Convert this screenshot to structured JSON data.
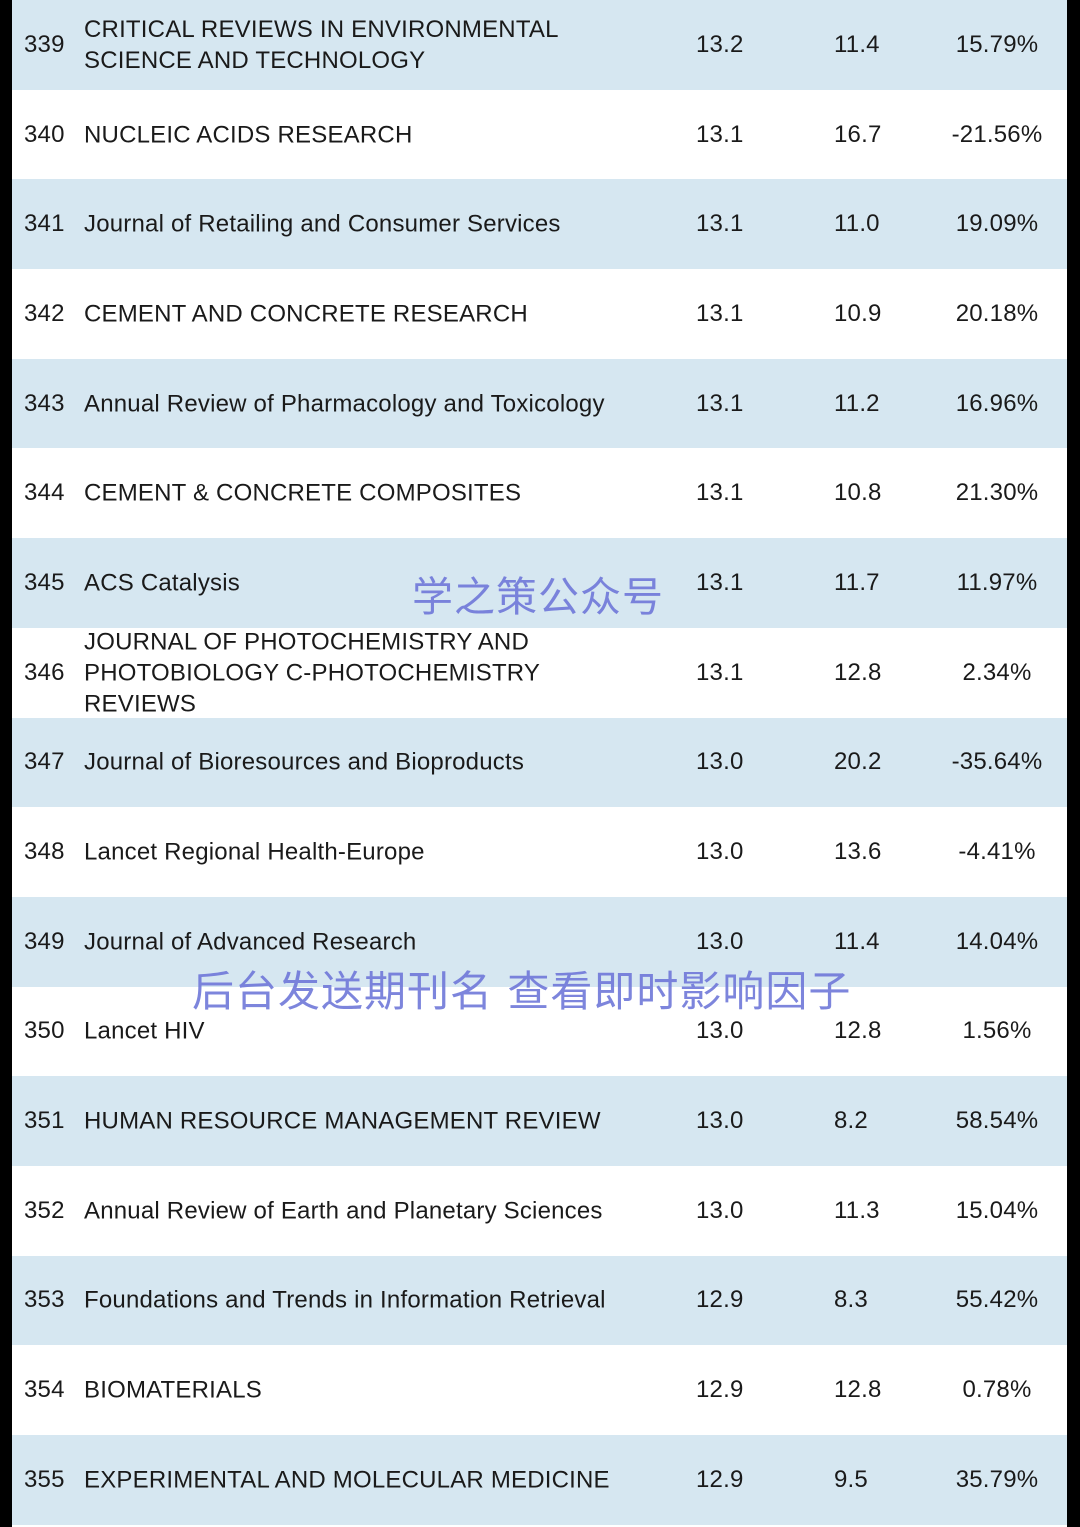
{
  "rows": [
    {
      "rank": "339",
      "name": "CRITICAL REVIEWS IN ENVIRONMENTAL\nSCIENCE AND TECHNOLOGY",
      "if2023": "13.2",
      "if2022": "11.4",
      "change": "15.79%"
    },
    {
      "rank": "340",
      "name": "NUCLEIC ACIDS RESEARCH",
      "if2023": "13.1",
      "if2022": "16.7",
      "change": "-21.56%"
    },
    {
      "rank": "341",
      "name": "Journal of Retailing and Consumer Services",
      "if2023": "13.1",
      "if2022": "11.0",
      "change": "19.09%"
    },
    {
      "rank": "342",
      "name": "CEMENT AND CONCRETE RESEARCH",
      "if2023": "13.1",
      "if2022": "10.9",
      "change": "20.18%"
    },
    {
      "rank": "343",
      "name": "Annual Review of Pharmacology and Toxicology",
      "if2023": "13.1",
      "if2022": "11.2",
      "change": "16.96%"
    },
    {
      "rank": "344",
      "name": "CEMENT & CONCRETE COMPOSITES",
      "if2023": "13.1",
      "if2022": "10.8",
      "change": "21.30%"
    },
    {
      "rank": "345",
      "name": "ACS Catalysis",
      "if2023": "13.1",
      "if2022": "11.7",
      "change": "11.97%"
    },
    {
      "rank": "346",
      "name": "JOURNAL OF PHOTOCHEMISTRY AND\nPHOTOBIOLOGY C-PHOTOCHEMISTRY\nREVIEWS",
      "if2023": "13.1",
      "if2022": "12.8",
      "change": "2.34%"
    },
    {
      "rank": "347",
      "name": "Journal of Bioresources and Bioproducts",
      "if2023": "13.0",
      "if2022": "20.2",
      "change": "-35.64%"
    },
    {
      "rank": "348",
      "name": "Lancet Regional Health-Europe",
      "if2023": "13.0",
      "if2022": "13.6",
      "change": "-4.41%"
    },
    {
      "rank": "349",
      "name": "Journal of Advanced Research",
      "if2023": "13.0",
      "if2022": "11.4",
      "change": "14.04%"
    },
    {
      "rank": "350",
      "name": "Lancet HIV",
      "if2023": "13.0",
      "if2022": "12.8",
      "change": "1.56%"
    },
    {
      "rank": "351",
      "name": "HUMAN RESOURCE MANAGEMENT REVIEW",
      "if2023": "13.0",
      "if2022": "8.2",
      "change": "58.54%"
    },
    {
      "rank": "352",
      "name": "Annual Review of Earth and Planetary Sciences",
      "if2023": "13.0",
      "if2022": "11.3",
      "change": "15.04%"
    },
    {
      "rank": "353",
      "name": "Foundations and Trends in Information Retrieval",
      "if2023": "12.9",
      "if2022": "8.3",
      "change": "55.42%"
    },
    {
      "rank": "354",
      "name": "BIOMATERIALS",
      "if2023": "12.9",
      "if2022": "12.8",
      "change": "0.78%"
    },
    {
      "rank": "355",
      "name": "EXPERIMENTAL AND MOLECULAR MEDICINE",
      "if2023": "12.9",
      "if2022": "9.5",
      "change": "35.79%"
    }
  ],
  "watermarks": {
    "account": "学之策公众号",
    "tip": "后台发送期刊名 查看即时影响因子"
  },
  "colors": {
    "stripe": "#d6e7f1",
    "background": "#ffffff",
    "border": "#000000",
    "watermark": "#6f78d9"
  }
}
